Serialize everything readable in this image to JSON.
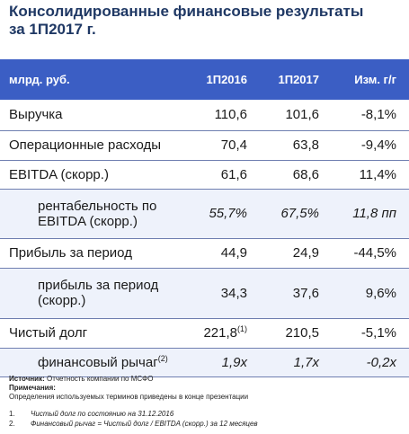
{
  "title": {
    "line1": "Консолидированные финансовые результаты",
    "line2": "за 1П2017 г."
  },
  "table": {
    "headers": [
      "млрд. руб.",
      "1П2016",
      "1П2017",
      "Изм. г/г"
    ],
    "rows": [
      {
        "label": "Выручка",
        "v2016": "110,6",
        "v2016_sup": "",
        "v2017": "101,6",
        "change": "-8,1%"
      },
      {
        "label": "Операционные расходы",
        "v2016": "70,4",
        "v2016_sup": "",
        "v2017": "63,8",
        "change": "-9,4%"
      },
      {
        "label": "EBITDA (скорр.)",
        "v2016": "61,6",
        "v2016_sup": "",
        "v2017": "68,6",
        "change": "11,4%"
      },
      {
        "label_line1": "рентабельность по",
        "label_line2": "EBITDA (скорр.)",
        "v2016": "55,7%",
        "v2016_sup": "",
        "v2017": "67,5%",
        "change": "11,8 пп"
      },
      {
        "label": "Прибыль за период",
        "v2016": "44,9",
        "v2016_sup": "",
        "v2017": "24,9",
        "change": "-44,5%"
      },
      {
        "label_line1": "прибыль за период",
        "label_line2": "(скорр.)",
        "v2016": "34,3",
        "v2016_sup": "",
        "v2017": "37,6",
        "change": "9,6%"
      },
      {
        "label": "Чистый долг",
        "v2016": "221,8",
        "v2016_sup": "(1)",
        "v2017": "210,5",
        "change": "-5,1%"
      },
      {
        "label": "финансовый рычаг",
        "label_sup": "(2)",
        "v2016": "1,9x",
        "v2016_sup": "",
        "v2017": "1,7x",
        "change": "-0,2x"
      }
    ]
  },
  "notes": {
    "source_label": "Источник:",
    "source_text": "Отчетность компании по МСФО",
    "remarks_label": "Примечания:",
    "remarks_text": "Определения используемых терминов приведены в конце презентации",
    "footnotes": [
      {
        "num": "1.",
        "text": "Чистый долг по состоянию на 31.12.2016"
      },
      {
        "num": "2.",
        "text": "Финансовый рычаг = Чистый долг / EBITDA (скорр.) за 12 месяцев"
      }
    ]
  }
}
